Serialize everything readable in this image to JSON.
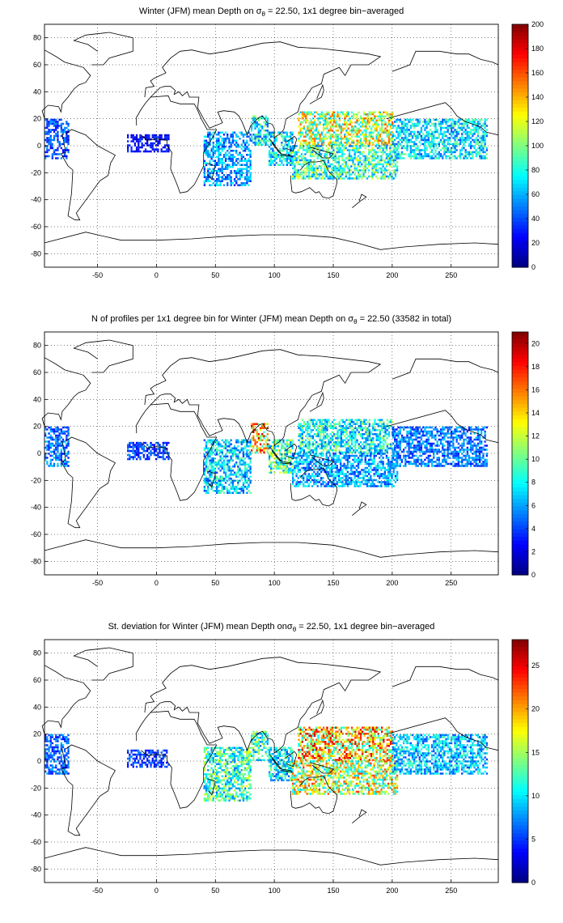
{
  "chart_data": [
    {
      "type": "heatmap",
      "title_pre": "Winter (JFM) mean Depth on ",
      "title_sym": "σ",
      "title_sub": "θ",
      "title_post": " = 22.50, 1x1 degree bin−averaged",
      "xlim": [
        -95,
        290
      ],
      "ylim": [
        -90,
        90
      ],
      "xticks": [
        "-50",
        "0",
        "50",
        "100",
        "150",
        "200",
        "250"
      ],
      "yticks": [
        "80",
        "60",
        "40",
        "20",
        "0",
        "-20",
        "-40",
        "-60",
        "-80"
      ],
      "colorbar_ticks": [
        "200",
        "180",
        "160",
        "140",
        "120",
        "100",
        "80",
        "60",
        "40",
        "20",
        "0"
      ],
      "clim": [
        0,
        200
      ],
      "grid": true,
      "regions": [
        {
          "lon": [
            -95,
            -75
          ],
          "lat": [
            -10,
            20
          ],
          "value": 40
        },
        {
          "lon": [
            -25,
            10
          ],
          "lat": [
            -5,
            8
          ],
          "value": 25
        },
        {
          "lon": [
            40,
            80
          ],
          "lat": [
            -30,
            10
          ],
          "value": 55
        },
        {
          "lon": [
            80,
            95
          ],
          "lat": [
            0,
            22
          ],
          "value": 75
        },
        {
          "lon": [
            95,
            115
          ],
          "lat": [
            -15,
            10
          ],
          "value": 70
        },
        {
          "lon": [
            120,
            200
          ],
          "lat": [
            0,
            25
          ],
          "value": 110
        },
        {
          "lon": [
            115,
            205
          ],
          "lat": [
            -25,
            0
          ],
          "value": 85
        },
        {
          "lon": [
            200,
            280
          ],
          "lat": [
            -10,
            20
          ],
          "value": 70
        }
      ]
    },
    {
      "type": "heatmap",
      "title_pre": "N of profiles per 1x1 degree bin for Winter (JFM) mean Depth on ",
      "title_sym": "σ",
      "title_sub": "θ",
      "title_post": " = 22.50 (33582 in total)",
      "xlim": [
        -95,
        290
      ],
      "ylim": [
        -90,
        90
      ],
      "xticks": [
        "-50",
        "0",
        "50",
        "100",
        "150",
        "200",
        "250"
      ],
      "yticks": [
        "80",
        "60",
        "40",
        "20",
        "0",
        "-20",
        "-40",
        "-60",
        "-80"
      ],
      "colorbar_ticks": [
        "20",
        "18",
        "16",
        "14",
        "12",
        "10",
        "8",
        "6",
        "4",
        "2",
        "0"
      ],
      "clim": [
        0,
        21
      ],
      "grid": true,
      "regions": [
        {
          "lon": [
            -95,
            -75
          ],
          "lat": [
            -10,
            20
          ],
          "value": 5
        },
        {
          "lon": [
            -25,
            10
          ],
          "lat": [
            -5,
            8
          ],
          "value": 4
        },
        {
          "lon": [
            40,
            80
          ],
          "lat": [
            -30,
            10
          ],
          "value": 7
        },
        {
          "lon": [
            80,
            95
          ],
          "lat": [
            0,
            22
          ],
          "value": 14
        },
        {
          "lon": [
            95,
            115
          ],
          "lat": [
            -15,
            10
          ],
          "value": 9
        },
        {
          "lon": [
            120,
            200
          ],
          "lat": [
            0,
            25
          ],
          "value": 8
        },
        {
          "lon": [
            115,
            205
          ],
          "lat": [
            -25,
            0
          ],
          "value": 6
        },
        {
          "lon": [
            200,
            280
          ],
          "lat": [
            -10,
            20
          ],
          "value": 5
        }
      ]
    },
    {
      "type": "heatmap",
      "title_pre": "St. deviation for Winter (JFM) mean Depth on",
      "title_sym": "σ",
      "title_sub": "θ",
      "title_post": " = 22.50, 1x1 degree bin−averaged",
      "xlim": [
        -95,
        290
      ],
      "ylim": [
        -90,
        90
      ],
      "xticks": [
        "-50",
        "0",
        "50",
        "100",
        "150",
        "200",
        "250"
      ],
      "yticks": [
        "80",
        "60",
        "40",
        "20",
        "0",
        "-20",
        "-40",
        "-60",
        "-80"
      ],
      "colorbar_ticks": [
        "25",
        "20",
        "15",
        "10",
        "5",
        "0"
      ],
      "clim": [
        0,
        28
      ],
      "grid": true,
      "regions": [
        {
          "lon": [
            -95,
            -75
          ],
          "lat": [
            -10,
            20
          ],
          "value": 6
        },
        {
          "lon": [
            -25,
            10
          ],
          "lat": [
            -5,
            8
          ],
          "value": 5
        },
        {
          "lon": [
            40,
            80
          ],
          "lat": [
            -30,
            10
          ],
          "value": 12
        },
        {
          "lon": [
            80,
            95
          ],
          "lat": [
            0,
            22
          ],
          "value": 12
        },
        {
          "lon": [
            95,
            115
          ],
          "lat": [
            -15,
            10
          ],
          "value": 10
        },
        {
          "lon": [
            120,
            200
          ],
          "lat": [
            0,
            25
          ],
          "value": 18
        },
        {
          "lon": [
            115,
            205
          ],
          "lat": [
            -25,
            0
          ],
          "value": 16
        },
        {
          "lon": [
            200,
            280
          ],
          "lat": [
            -10,
            20
          ],
          "value": 9
        }
      ]
    }
  ]
}
